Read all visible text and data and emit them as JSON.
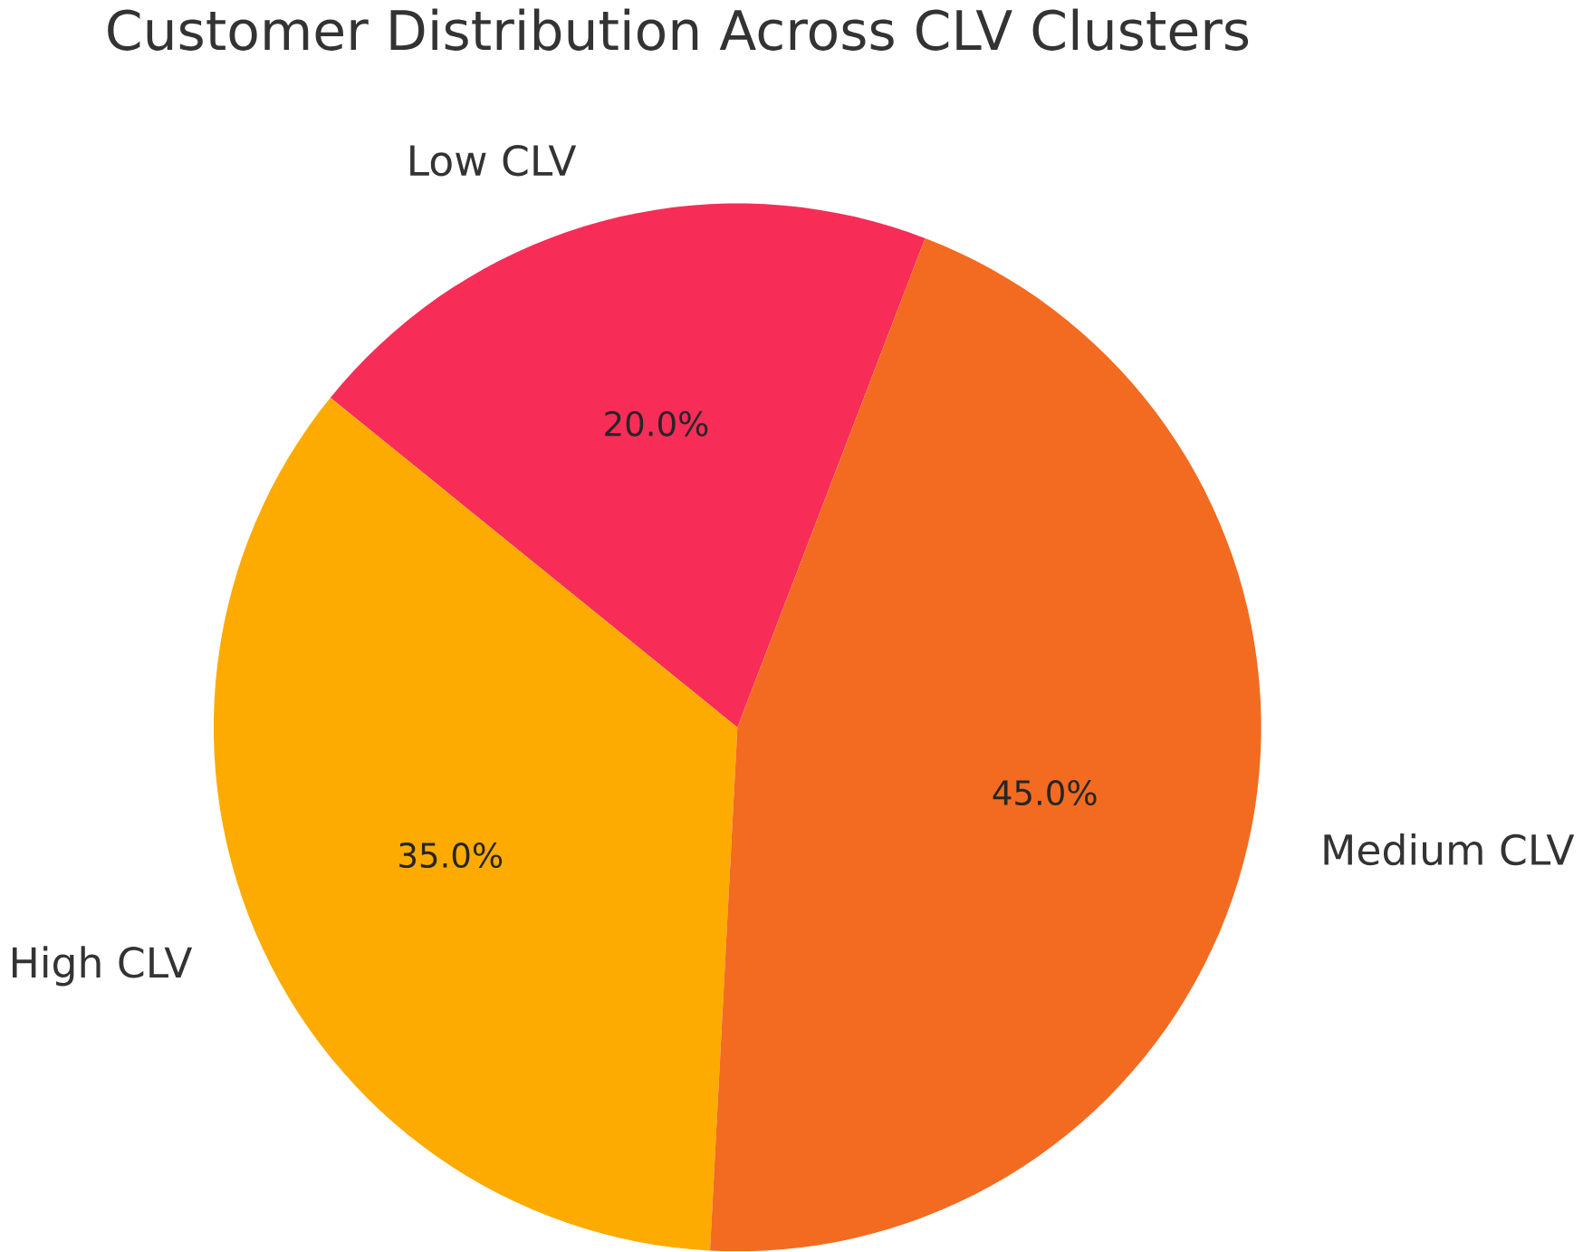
{
  "chart_data": {
    "type": "pie",
    "title": "Customer Distribution Across CLV Clusters",
    "categories": [
      "Low CLV",
      "High CLV",
      "Medium CLV"
    ],
    "values": [
      20,
      35,
      45
    ],
    "colors": [
      "#f72d58",
      "#fdab00",
      "#f26b20"
    ],
    "value_labels": [
      "20.0%",
      "35.0%",
      "45.0%"
    ]
  }
}
